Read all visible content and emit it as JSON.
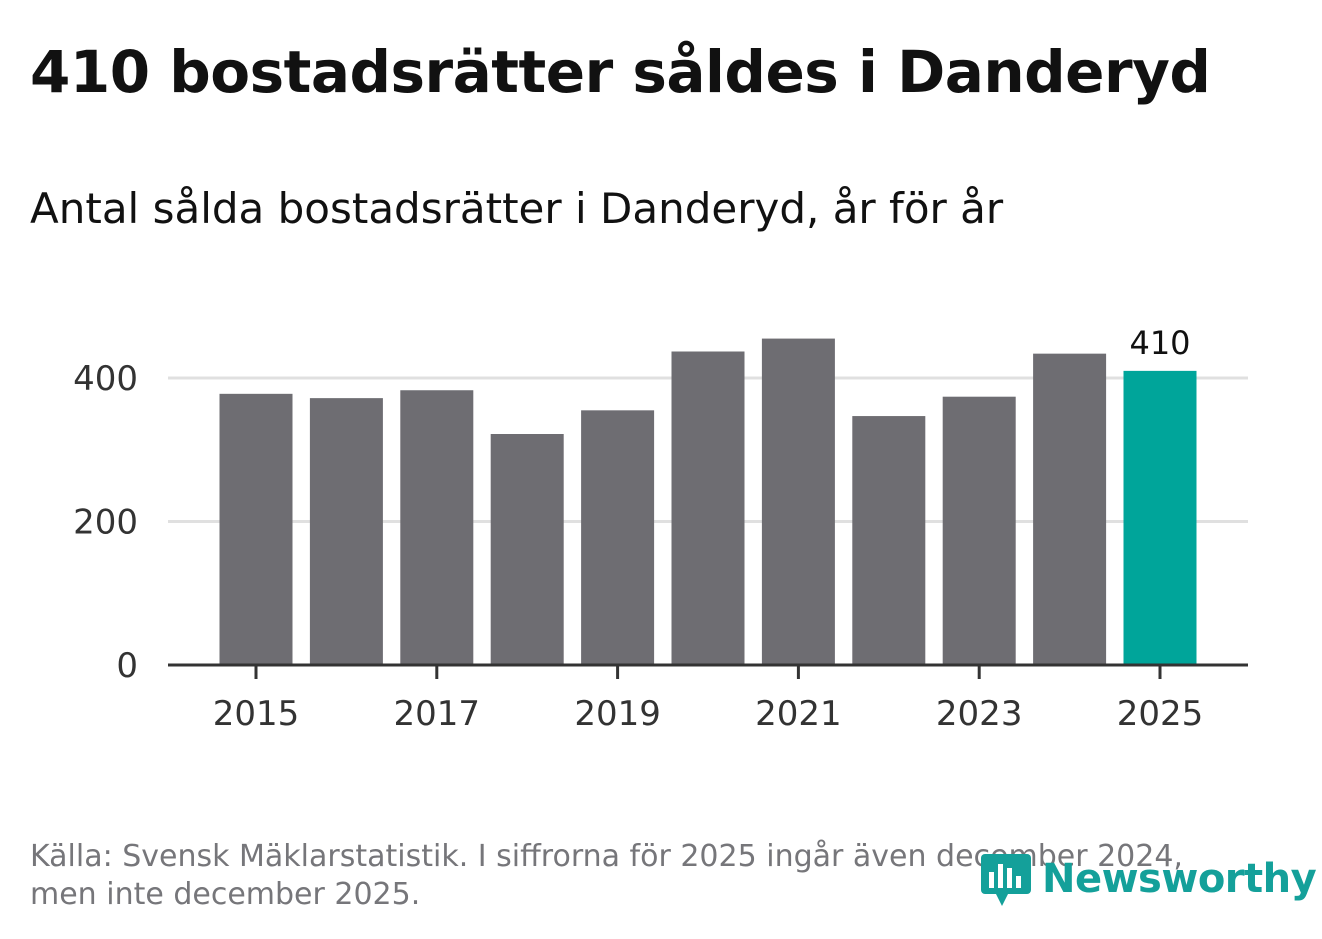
{
  "title": "410 bostadsrätter såldes i Danderyd",
  "subtitle": "Antal sålda bostadsrätter i Danderyd, år för år",
  "footnote": "Källa: Svensk Mäklarstatistik. I siffrorna för 2025 ingår även december 2024, men inte december 2025.",
  "brand": {
    "name": "Newsworthy",
    "icon": "newsworthy-logo-icon",
    "color": "#14a09a"
  },
  "colors": {
    "bar": "#6e6d72",
    "highlight": "#00a59a",
    "grid": "#e0e0e0",
    "axis": "#333333",
    "tick_text": "#333333"
  },
  "chart_data": {
    "type": "bar",
    "title": "Antal sålda bostadsrätter i Danderyd, år för år",
    "xlabel": "",
    "ylabel": "",
    "categories": [
      "2015",
      "2016",
      "2017",
      "2018",
      "2019",
      "2020",
      "2021",
      "2022",
      "2023",
      "2024",
      "2025"
    ],
    "values": [
      378,
      372,
      383,
      322,
      355,
      437,
      455,
      347,
      374,
      434,
      410
    ],
    "ylim": [
      0,
      460
    ],
    "yticks": [
      0,
      200,
      400
    ],
    "xticks": [
      "2015",
      "2017",
      "2019",
      "2021",
      "2023",
      "2025"
    ],
    "highlight": "2025",
    "data_labels": [
      {
        "category": "2025",
        "text": "410"
      }
    ],
    "grid": true
  }
}
